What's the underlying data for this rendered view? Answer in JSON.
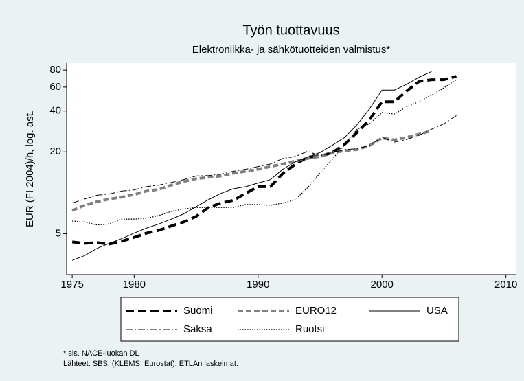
{
  "chart_data": {
    "type": "line",
    "title": "Työn tuottavuus",
    "subtitle": "Elektroniikka- ja sähkötuotteiden valmistus*",
    "y_label": "EUR (FI 2004)/h, log. ast.",
    "notes": [
      "* sis. NACE-luokan DL",
      "Lähteet: SBS, (KLEMS, Eurostat), ETLAn laskelmat."
    ],
    "ylog": true,
    "grid": false,
    "legend": "bottom",
    "xlim": [
      1974.55,
      2010.85
    ],
    "xticks": [
      1975,
      1980,
      1990,
      2000,
      2010
    ],
    "ylim": [
      2.5,
      90
    ],
    "yticks": [
      5,
      20,
      40,
      60,
      80
    ],
    "x": [
      1975,
      1976,
      1977,
      1978,
      1979,
      1980,
      1981,
      1982,
      1983,
      1984,
      1985,
      1986,
      1987,
      1988,
      1989,
      1990,
      1991,
      1992,
      1993,
      1994,
      1995,
      1996,
      1997,
      1998,
      1999,
      2000,
      2001,
      2002,
      2003,
      2004,
      2005,
      2006
    ],
    "series": [
      {
        "name": "Suomi",
        "color": "#000000",
        "width": 4,
        "dash": "12,6",
        "values": [
          4.35,
          4.25,
          4.3,
          4.2,
          4.4,
          4.7,
          5.05,
          5.3,
          5.7,
          6.1,
          6.7,
          7.8,
          8.4,
          8.8,
          9.9,
          11.1,
          11.1,
          13.9,
          16.2,
          18.3,
          18.5,
          19.8,
          22.8,
          27.9,
          34.6,
          46.8,
          46.8,
          56.2,
          66,
          68,
          68,
          72
        ]
      },
      {
        "name": "EURO12",
        "color": "#808080",
        "width": 4,
        "dash": "8,4",
        "values": [
          7.4,
          8.1,
          8.6,
          9.0,
          9.3,
          9.7,
          10.3,
          10.6,
          11.4,
          12.1,
          12.7,
          13.0,
          13.3,
          13.9,
          14.4,
          14.9,
          15.6,
          16.3,
          17.1,
          17.9,
          18.5,
          19.7,
          20.4,
          20.8,
          22.3,
          25.3,
          24.5,
          25.6,
          27.0,
          28.6,
          null,
          null
        ]
      },
      {
        "name": "USA",
        "color": "#000000",
        "width": 1,
        "dash": "none",
        "values": [
          3.18,
          3.45,
          3.9,
          4.25,
          4.6,
          5.05,
          5.5,
          5.9,
          6.4,
          7.0,
          7.9,
          8.9,
          9.9,
          10.7,
          11.1,
          11.8,
          12.5,
          14.9,
          16.9,
          18.3,
          19.8,
          22.4,
          25.6,
          31.8,
          41.6,
          57,
          57,
          63,
          71,
          78,
          null,
          null
        ]
      },
      {
        "name": "Saksa",
        "color": "#000000",
        "width": 1,
        "dash": "10,3,2,3",
        "values": [
          8.4,
          9.0,
          9.6,
          9.8,
          10.3,
          10.5,
          11.1,
          11.4,
          11.9,
          12.5,
          13.3,
          13.4,
          13.7,
          14.4,
          14.9,
          15.6,
          16.3,
          17.9,
          18.5,
          20.2,
          18.7,
          19.8,
          20.8,
          21.1,
          22.3,
          25.6,
          23.6,
          24.7,
          26.5,
          29.4,
          32.2,
          37
        ]
      },
      {
        "name": "Ruotsi",
        "color": "#000000",
        "width": 1.3,
        "dash": "1.5,2",
        "values": [
          6.2,
          6.1,
          5.8,
          5.9,
          6.4,
          6.4,
          6.5,
          6.8,
          7.3,
          7.6,
          7.8,
          7.8,
          7.8,
          7.8,
          8.2,
          8.2,
          8.1,
          8.4,
          8.9,
          10.9,
          14.0,
          17.7,
          22.6,
          29.4,
          32.2,
          39,
          38,
          43,
          47,
          52.4,
          59.3,
          68
        ]
      }
    ]
  }
}
